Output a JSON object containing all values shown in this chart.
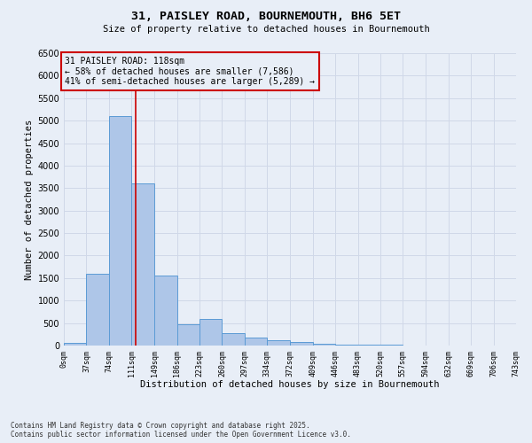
{
  "title1": "31, PAISLEY ROAD, BOURNEMOUTH, BH6 5ET",
  "title2": "Size of property relative to detached houses in Bournemouth",
  "xlabel": "Distribution of detached houses by size in Bournemouth",
  "ylabel": "Number of detached properties",
  "annotation_line1": "31 PAISLEY ROAD: 118sqm",
  "annotation_line2": "← 58% of detached houses are smaller (7,586)",
  "annotation_line3": "41% of semi-detached houses are larger (5,289) →",
  "property_size": 118,
  "bin_edges": [
    0,
    37,
    74,
    111,
    149,
    186,
    223,
    260,
    297,
    334,
    372,
    409,
    446,
    483,
    520,
    557,
    594,
    632,
    669,
    706,
    743
  ],
  "bar_heights": [
    50,
    1600,
    5100,
    3600,
    1550,
    480,
    600,
    280,
    170,
    120,
    70,
    30,
    20,
    15,
    10,
    8,
    5,
    4,
    3,
    3
  ],
  "bar_color": "#aec6e8",
  "bar_edge_color": "#5b9bd5",
  "grid_color": "#d0d8e8",
  "vline_color": "#cc0000",
  "annotation_box_color": "#cc0000",
  "background_color": "#e8eef7",
  "ylim": [
    0,
    6500
  ],
  "yticks": [
    0,
    500,
    1000,
    1500,
    2000,
    2500,
    3000,
    3500,
    4000,
    4500,
    5000,
    5500,
    6000,
    6500
  ],
  "footer1": "Contains HM Land Registry data © Crown copyright and database right 2025.",
  "footer2": "Contains public sector information licensed under the Open Government Licence v3.0."
}
